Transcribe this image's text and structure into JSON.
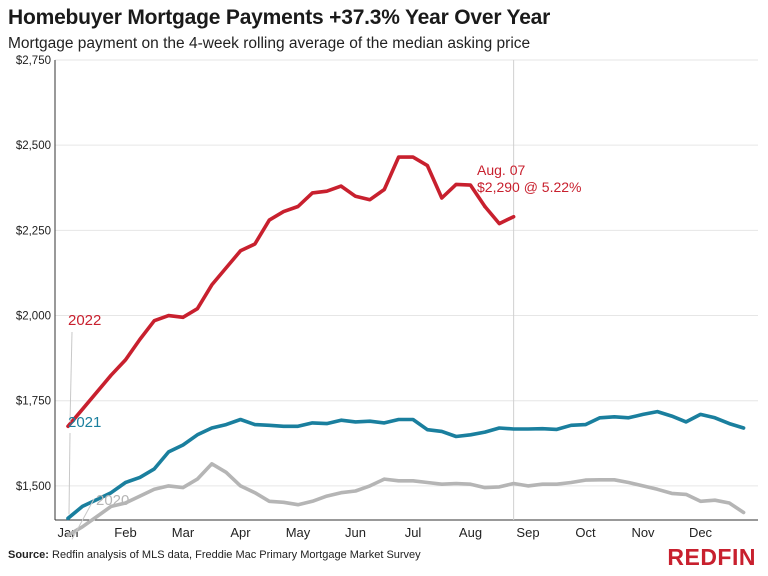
{
  "title": "Homebuyer Mortgage Payments +37.3% Year Over Year",
  "subtitle": "Mortgage payment on the 4-week rolling average of the median asking price",
  "source_label": "Source:",
  "source_text": "Redfin analysis of MLS data, Freddie Mac Primary Mortgage Market Survey",
  "brand": "REDFIN",
  "chart_data": {
    "type": "line",
    "x_ticks": [
      "Jan",
      "Feb",
      "Mar",
      "Apr",
      "May",
      "Jun",
      "Jul",
      "Aug",
      "Sep",
      "Oct",
      "Nov",
      "Dec"
    ],
    "y_ticks": [
      "$1,500",
      "$1,750",
      "$2,000",
      "$2,250",
      "$2,500",
      "$2,750"
    ],
    "y_tick_values": [
      1500,
      1750,
      2000,
      2250,
      2500,
      2750
    ],
    "ylim": [
      1400,
      2750
    ],
    "xlim": [
      0,
      12
    ],
    "grid": true,
    "series": [
      {
        "name": "2022",
        "color": "#c8202e",
        "x": [
          0,
          0.25,
          0.5,
          0.75,
          1.0,
          1.25,
          1.5,
          1.75,
          2.0,
          2.25,
          2.5,
          2.75,
          3.0,
          3.25,
          3.5,
          3.75,
          4.0,
          4.25,
          4.5,
          4.75,
          5.0,
          5.25,
          5.5,
          5.75,
          6.0,
          6.25,
          6.5,
          6.75,
          7.0,
          7.25
        ],
        "values": [
          1675,
          1725,
          1775,
          1825,
          1870,
          1930,
          1985,
          2000,
          1995,
          2020,
          2090,
          2140,
          2190,
          2210,
          2280,
          2305,
          2320,
          2360,
          2365,
          2380,
          2350,
          2340,
          2370,
          2465,
          2465,
          2440,
          2345,
          2385,
          2383,
          2320
        ]
      },
      {
        "name": "2022-tail",
        "color": "#c8202e",
        "x": [
          7.25,
          7.5,
          7.75
        ],
        "values": [
          2320,
          2270,
          2290
        ]
      },
      {
        "name": "2021",
        "color": "#1a7f9e",
        "x": [
          0,
          0.25,
          0.5,
          0.75,
          1.0,
          1.25,
          1.5,
          1.75,
          2.0,
          2.25,
          2.5,
          2.75,
          3.0,
          3.25,
          3.5,
          3.75,
          4.0,
          4.25,
          4.5,
          4.75,
          5.0,
          5.25,
          5.5,
          5.75,
          6.0,
          6.25,
          6.5,
          6.75,
          7.0,
          7.25,
          7.5,
          7.75,
          8.0,
          8.25,
          8.5,
          8.75,
          9.0,
          9.25,
          9.5,
          9.75,
          10.0,
          10.25,
          10.5,
          10.75,
          11.0,
          11.25,
          11.5,
          11.75
        ],
        "values": [
          1405,
          1440,
          1460,
          1480,
          1510,
          1525,
          1550,
          1600,
          1620,
          1650,
          1670,
          1680,
          1695,
          1680,
          1678,
          1675,
          1675,
          1685,
          1683,
          1693,
          1688,
          1690,
          1685,
          1695,
          1695,
          1665,
          1660,
          1645,
          1650,
          1658,
          1670,
          1667,
          1667,
          1668,
          1666,
          1678,
          1680,
          1700,
          1703,
          1700,
          1710,
          1718,
          1705,
          1688,
          1710,
          1700,
          1683,
          1670
        ]
      },
      {
        "name": "2020",
        "color": "#b5b5b5",
        "x": [
          0,
          0.25,
          0.5,
          0.75,
          1.0,
          1.25,
          1.5,
          1.75,
          2.0,
          2.25,
          2.5,
          2.75,
          3.0,
          3.25,
          3.5,
          3.75,
          4.0,
          4.25,
          4.5,
          4.75,
          5.0,
          5.25,
          5.5,
          5.75,
          6.0,
          6.25,
          6.5,
          6.75,
          7.0,
          7.25,
          7.5,
          7.75,
          8.0,
          8.25,
          8.5,
          8.75,
          9.0,
          9.25,
          9.5,
          9.75,
          10.0,
          10.25,
          10.5,
          10.75,
          11.0,
          11.25,
          11.5,
          11.75
        ],
        "values": [
          1355,
          1380,
          1410,
          1440,
          1450,
          1470,
          1490,
          1500,
          1495,
          1520,
          1565,
          1540,
          1500,
          1480,
          1455,
          1452,
          1445,
          1455,
          1470,
          1480,
          1485,
          1500,
          1520,
          1515,
          1515,
          1510,
          1505,
          1507,
          1505,
          1495,
          1497,
          1507,
          1500,
          1505,
          1505,
          1510,
          1517,
          1518,
          1518,
          1510,
          1500,
          1490,
          1478,
          1475,
          1455,
          1458,
          1450,
          1422
        ]
      }
    ],
    "series_labels": [
      {
        "text": "2022",
        "color": "#c8202e"
      },
      {
        "text": "2021",
        "color": "#1a7f9e"
      },
      {
        "text": "2020",
        "color": "#b5b5b5"
      }
    ],
    "annotation": {
      "line1": "Aug. 07",
      "line2": "$2,290 @ 5.22%",
      "x": 7.75,
      "color": "#c8202e"
    }
  }
}
